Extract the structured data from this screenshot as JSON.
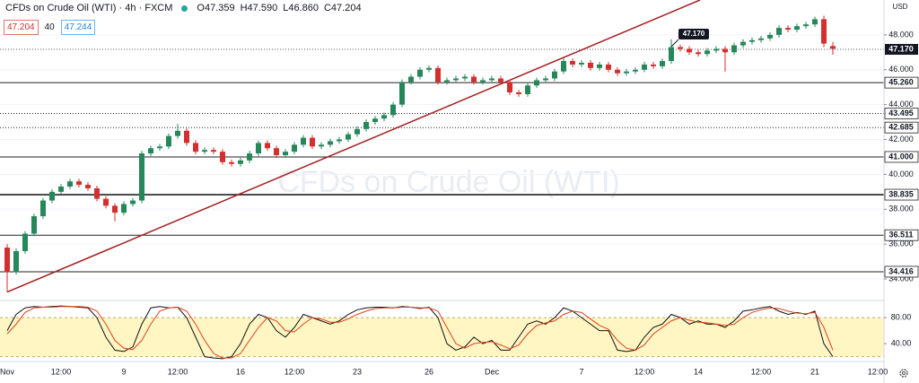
{
  "chart_data": {
    "type": "candlestick",
    "title": "CFDs on Crude Oil (WTI) · 4h · FXCM",
    "ohlc_label": {
      "open": "O47.359",
      "high": "H47.590",
      "low": "L46.860",
      "close": "C47.204"
    },
    "badges": [
      "47.204",
      "40",
      "47.244"
    ],
    "currency": "USD",
    "watermark": "CFDs on Crude Oil (WTI)",
    "up_color": "#26875a",
    "down_color": "#d32f2f",
    "grid": true,
    "categories": [
      "Nov",
      null,
      null,
      null,
      null,
      null,
      "12:00",
      null,
      null,
      null,
      null,
      null,
      null,
      "9",
      null,
      null,
      null,
      null,
      null,
      "12:00",
      null,
      null,
      null,
      null,
      null,
      null,
      "16",
      null,
      null,
      null,
      null,
      null,
      "12:00",
      null,
      null,
      null,
      null,
      null,
      null,
      "23",
      null,
      null,
      null,
      null,
      null,
      null,
      null,
      "26",
      null,
      null,
      null,
      null,
      null,
      null,
      "Dec",
      null,
      null,
      null,
      null,
      null,
      null,
      null,
      null,
      null,
      "7",
      null,
      null,
      null,
      null,
      null,
      null,
      "12:00",
      null,
      null,
      null,
      null,
      null,
      "14",
      null,
      null,
      null,
      null,
      null,
      null,
      "12:00",
      null,
      null,
      null,
      null,
      null,
      "21",
      null,
      null,
      null,
      null,
      null,
      null,
      "12:00"
    ],
    "open": [
      35.8,
      34.4,
      35.6,
      36.6,
      37.6,
      38.5,
      39.0,
      39.3,
      39.6,
      39.4,
      39.2,
      38.6,
      38.2,
      37.8,
      38.3,
      38.5,
      41.2,
      41.5,
      41.6,
      42.2,
      42.5,
      41.8,
      41.3,
      41.4,
      41.3,
      40.7,
      40.6,
      40.8,
      41.2,
      41.8,
      41.5,
      41.1,
      41.3,
      41.7,
      42.1,
      41.6,
      41.7,
      41.9,
      42.0,
      42.3,
      42.6,
      43.0,
      43.2,
      43.4,
      44.0,
      45.3,
      45.6,
      46.0,
      46.1,
      45.3,
      45.4,
      45.5,
      45.6,
      45.3,
      45.4,
      45.5,
      45.3,
      44.7,
      44.6,
      45.1,
      45.4,
      45.5,
      45.9,
      46.5,
      46.3,
      46.4,
      46.1,
      46.3,
      46.0,
      45.8,
      45.9,
      46.0,
      46.3,
      46.2,
      46.5,
      47.3,
      47.2,
      47.0,
      46.9,
      47.1,
      47.2,
      47.0,
      47.4,
      47.6,
      47.7,
      47.8,
      48.0,
      48.4,
      48.3,
      48.5,
      48.6,
      48.9,
      47.359,
      null,
      null,
      null,
      null,
      null
    ],
    "high": [
      36.0,
      35.75,
      36.75,
      37.75,
      38.65,
      39.15,
      39.45,
      39.75,
      39.75,
      39.55,
      39.35,
      38.75,
      38.35,
      38.45,
      38.65,
      41.35,
      41.65,
      41.75,
      42.35,
      42.9,
      42.65,
      41.95,
      41.55,
      41.55,
      41.45,
      40.85,
      40.95,
      41.35,
      41.95,
      41.95,
      41.65,
      41.45,
      41.85,
      42.25,
      42.25,
      41.85,
      42.05,
      42.15,
      42.45,
      42.75,
      43.15,
      43.35,
      43.55,
      44.15,
      45.45,
      45.75,
      46.15,
      46.25,
      46.25,
      45.55,
      45.65,
      45.75,
      45.75,
      45.55,
      45.65,
      45.65,
      45.45,
      44.85,
      45.25,
      45.55,
      45.65,
      46.05,
      46.65,
      46.65,
      46.55,
      46.55,
      46.45,
      46.45,
      46.15,
      46.05,
      46.15,
      46.45,
      46.45,
      46.65,
      47.75,
      47.45,
      47.35,
      47.15,
      47.25,
      47.35,
      47.35,
      47.55,
      47.75,
      47.85,
      47.95,
      48.15,
      48.55,
      48.55,
      48.65,
      48.75,
      49.05,
      49.1,
      47.59,
      null,
      null,
      null,
      null,
      null
    ],
    "low": [
      33.25,
      34.25,
      35.45,
      36.45,
      37.45,
      38.35,
      38.85,
      39.15,
      39.25,
      39.05,
      38.45,
      38.05,
      37.3,
      37.65,
      38.15,
      38.35,
      41.05,
      41.35,
      41.45,
      42.05,
      41.65,
      41.15,
      41.15,
      41.15,
      40.55,
      40.45,
      40.45,
      40.65,
      41.05,
      41.35,
      40.95,
      40.95,
      41.15,
      41.55,
      41.45,
      41.45,
      41.55,
      41.75,
      41.85,
      42.15,
      42.45,
      42.85,
      43.05,
      43.25,
      43.85,
      45.15,
      45.45,
      45.85,
      45.15,
      45.15,
      45.25,
      45.35,
      45.15,
      45.15,
      45.25,
      45.15,
      44.55,
      44.45,
      44.45,
      44.95,
      45.25,
      45.35,
      45.75,
      46.15,
      46.15,
      45.95,
      45.95,
      45.85,
      45.65,
      45.65,
      45.75,
      45.85,
      46.05,
      46.05,
      46.35,
      47.05,
      46.85,
      46.75,
      46.75,
      46.95,
      45.9,
      46.85,
      47.25,
      47.45,
      47.55,
      47.65,
      47.85,
      48.15,
      48.15,
      48.35,
      48.45,
      47.3,
      46.86,
      null,
      null,
      null,
      null,
      null
    ],
    "close": [
      34.4,
      35.6,
      36.6,
      37.6,
      38.5,
      39.0,
      39.3,
      39.6,
      39.4,
      39.2,
      38.6,
      38.2,
      37.8,
      38.3,
      38.5,
      41.2,
      41.5,
      41.6,
      42.2,
      42.5,
      41.8,
      41.3,
      41.4,
      41.3,
      40.7,
      40.6,
      40.8,
      41.2,
      41.8,
      41.5,
      41.1,
      41.3,
      41.7,
      42.1,
      41.6,
      41.7,
      41.9,
      42.0,
      42.3,
      42.6,
      43.0,
      43.2,
      43.4,
      44.0,
      45.3,
      45.6,
      46.0,
      46.1,
      45.3,
      45.4,
      45.5,
      45.6,
      45.3,
      45.4,
      45.5,
      45.3,
      44.7,
      44.6,
      45.1,
      45.4,
      45.5,
      45.9,
      46.5,
      46.3,
      46.4,
      46.1,
      46.3,
      46.0,
      45.8,
      45.9,
      46.0,
      46.3,
      46.2,
      46.5,
      47.3,
      47.2,
      47.0,
      46.9,
      47.1,
      47.2,
      47.0,
      47.4,
      47.6,
      47.7,
      47.8,
      48.0,
      48.4,
      48.3,
      48.5,
      48.6,
      48.9,
      47.5,
      47.204,
      null,
      null,
      null,
      null,
      null
    ],
    "ylim": [
      32.87,
      50.0
    ],
    "yticks": [
      {
        "value": 34,
        "label": "34.000"
      },
      {
        "value": 36,
        "label": "36.000"
      },
      {
        "value": 38,
        "label": "38.000"
      },
      {
        "value": 40,
        "label": "40.000"
      },
      {
        "value": 42,
        "label": "42.000"
      },
      {
        "value": 44,
        "label": "44.000"
      },
      {
        "value": 46,
        "label": "46.000"
      },
      {
        "value": 48,
        "label": "48.000"
      }
    ],
    "levels": [
      {
        "value": 45.26,
        "label": "45.260",
        "style": "solid"
      },
      {
        "value": 43.495,
        "label": "43.495",
        "style": "dotted"
      },
      {
        "value": 42.685,
        "label": "42.685",
        "style": "dotted"
      },
      {
        "value": 41.0,
        "label": "41.000",
        "style": "solid"
      },
      {
        "value": 38.835,
        "label": "38.835",
        "style": "thick"
      },
      {
        "value": 36.511,
        "label": "36.511",
        "style": "solid"
      },
      {
        "value": 34.416,
        "label": "34.416",
        "style": "solid"
      }
    ],
    "last_price": {
      "value": 47.17,
      "label": "47.170"
    },
    "trendline": {
      "x": [
        0,
        77.2
      ],
      "y": [
        33.25,
        50.0
      ],
      "color": "#a31f1f"
    },
    "indicator": {
      "type": "stochastic",
      "ylim": [
        14,
        105
      ],
      "yticks": [
        {
          "value": 80,
          "label": "80.00"
        },
        {
          "value": 40,
          "label": "40.00"
        }
      ],
      "band": [
        20,
        80
      ],
      "band_color": "#fff6c4",
      "series": [
        {
          "color": "#111111",
          "values": [
            60,
            85,
            95,
            97,
            96,
            97,
            98,
            97,
            96,
            95,
            80,
            50,
            30,
            28,
            35,
            70,
            95,
            97,
            95,
            96,
            80,
            50,
            20,
            18,
            17,
            20,
            40,
            70,
            85,
            80,
            60,
            50,
            65,
            85,
            80,
            75,
            70,
            75,
            85,
            92,
            95,
            96,
            96,
            95,
            97,
            96,
            94,
            96,
            80,
            40,
            30,
            35,
            50,
            40,
            45,
            30,
            30,
            50,
            70,
            75,
            70,
            80,
            95,
            90,
            80,
            70,
            60,
            60,
            30,
            28,
            30,
            50,
            65,
            70,
            85,
            80,
            70,
            75,
            70,
            70,
            65,
            75,
            90,
            92,
            95,
            97,
            90,
            85,
            88,
            85,
            90,
            40,
            20,
            null,
            null,
            null,
            null,
            null
          ]
        },
        {
          "color": "#e0401c",
          "values": [
            55,
            70,
            88,
            95,
            96,
            96,
            97,
            97,
            97,
            96,
            90,
            70,
            45,
            33,
            31,
            45,
            70,
            90,
            95,
            96,
            90,
            70,
            45,
            25,
            18,
            18,
            25,
            45,
            65,
            80,
            75,
            60,
            58,
            70,
            80,
            78,
            73,
            73,
            78,
            85,
            90,
            94,
            95,
            95,
            96,
            96,
            95,
            95,
            90,
            65,
            40,
            33,
            40,
            42,
            43,
            38,
            32,
            38,
            55,
            68,
            72,
            75,
            85,
            90,
            88,
            78,
            68,
            62,
            45,
            33,
            30,
            38,
            55,
            65,
            75,
            80,
            76,
            73,
            72,
            70,
            68,
            70,
            80,
            88,
            92,
            95,
            94,
            90,
            87,
            86,
            88,
            65,
            30,
            null,
            null,
            null,
            null,
            null
          ]
        }
      ]
    }
  }
}
